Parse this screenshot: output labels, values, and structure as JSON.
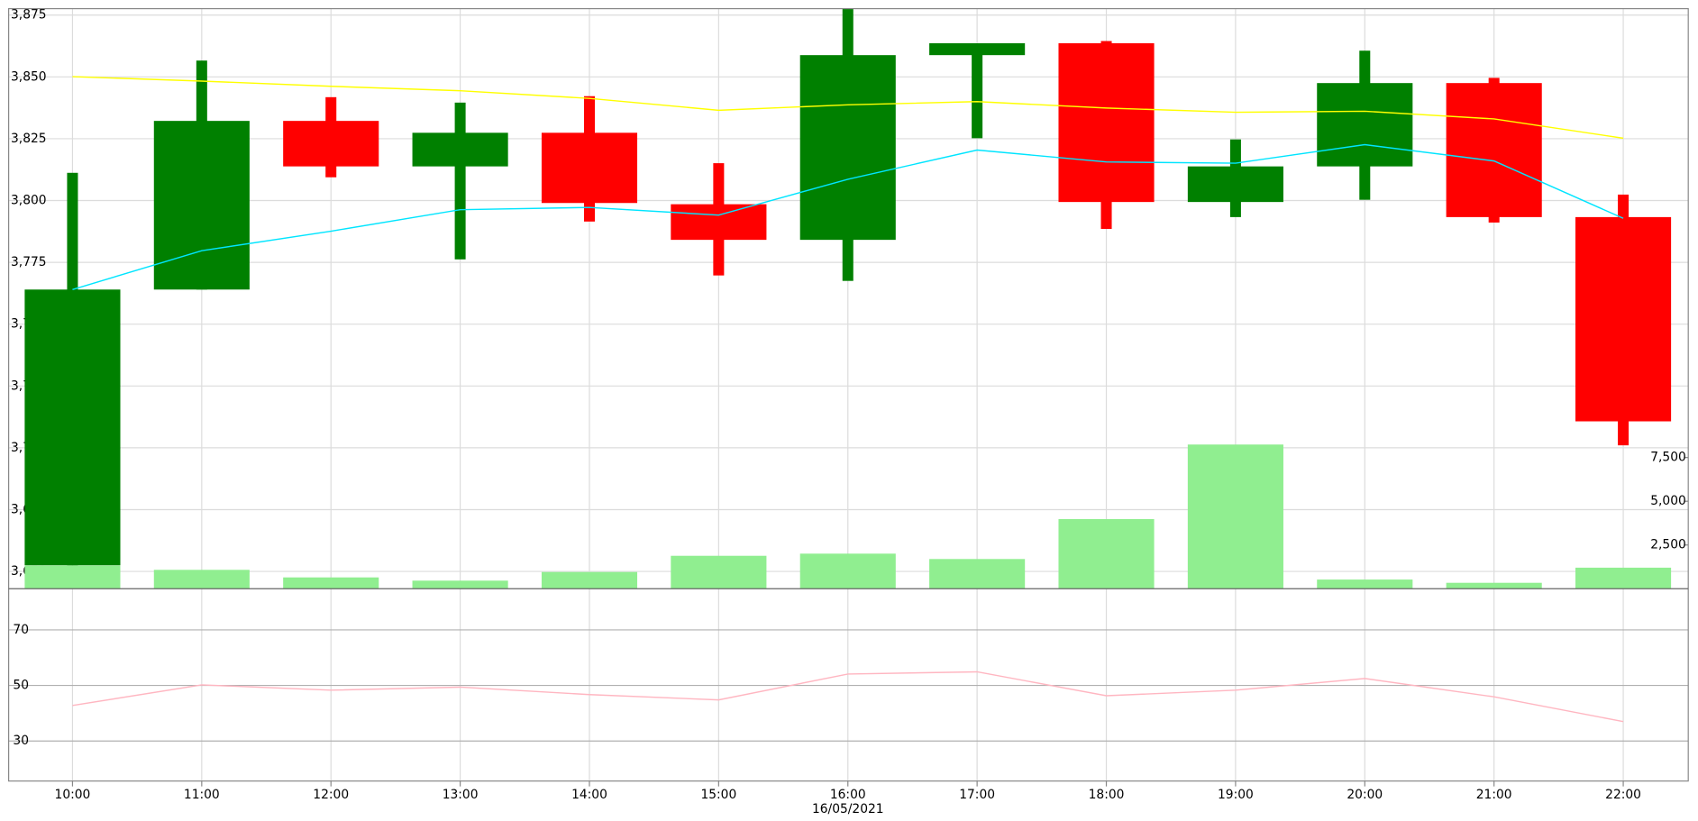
{
  "chart_data": [
    {
      "type": "candlestick",
      "categories": [
        "10:00",
        "11:00",
        "12:00",
        "13:00",
        "14:00",
        "15:00",
        "16:00",
        "17:00",
        "18:00",
        "19:00",
        "20:00",
        "21:00",
        "22:00"
      ],
      "x_label": "16/05/2021",
      "open": [
        3652.5,
        3764.0,
        3832.2,
        3813.8,
        3827.4,
        3798.5,
        3784.1,
        3858.8,
        3863.6,
        3799.4,
        3813.8,
        3847.5,
        3793.3
      ],
      "high": [
        3811.2,
        3856.6,
        3841.8,
        3839.6,
        3842.2,
        3815.1,
        3877.6,
        3863.6,
        3864.5,
        3824.7,
        3860.6,
        3849.6,
        3802.4
      ],
      "low": [
        3652.5,
        3764.0,
        3809.4,
        3776.2,
        3791.5,
        3769.7,
        3767.5,
        3825.2,
        3788.5,
        3793.3,
        3800.3,
        3791.1,
        3701.0
      ],
      "close": [
        3764.0,
        3832.2,
        3813.8,
        3827.4,
        3799.0,
        3784.1,
        3858.8,
        3863.6,
        3799.4,
        3813.8,
        3847.5,
        3793.3,
        3710.7
      ],
      "up_color": "#008000",
      "down_color": "#ff0000",
      "series": [
        {
          "color": "#ffff00",
          "values": [
            3850.1,
            3848.3,
            3846.2,
            3844.4,
            3841.3,
            3836.5,
            3838.7,
            3840.0,
            3837.4,
            3835.7,
            3836.1,
            3833.0,
            3825.2
          ]
        },
        {
          "color": "#00e5ff",
          "values": [
            3764.0,
            3779.7,
            3787.6,
            3796.3,
            3797.2,
            3794.1,
            3808.6,
            3820.4,
            3815.6,
            3815.1,
            3822.6,
            3816.0,
            3792.8
          ]
        }
      ],
      "volume": {
        "color": "#90ee90",
        "axis": "y2",
        "values": [
          1327,
          1080,
          648,
          463,
          957,
          1883,
          2006,
          1698,
          3981,
          8241,
          525,
          340,
          1204
        ]
      },
      "xlim": [
        -0.494,
        12.503
      ],
      "ylim": [
        3643,
        3877.6
      ],
      "yticks": [
        {
          "value": 3650,
          "label": "3,650"
        },
        {
          "value": 3675,
          "label": "3,675"
        },
        {
          "value": 3700,
          "label": "3,700"
        },
        {
          "value": 3725,
          "label": "3,725"
        },
        {
          "value": 3750,
          "label": "3,750"
        },
        {
          "value": 3775,
          "label": "3,775"
        },
        {
          "value": 3800,
          "label": "3,800"
        },
        {
          "value": 3825,
          "label": "3,825"
        },
        {
          "value": 3850,
          "label": "3,850"
        },
        {
          "value": 3875,
          "label": "3,875"
        }
      ],
      "y2lim": [
        0,
        33150
      ],
      "y2ticks": [
        {
          "value": 2500,
          "label": "2,500"
        },
        {
          "value": 5000,
          "label": "5,000"
        },
        {
          "value": 7500,
          "label": "7,500"
        }
      ],
      "grid": true
    },
    {
      "type": "line",
      "series": [
        {
          "color": "#ffb6c1",
          "values": [
            42.8,
            50.2,
            48.3,
            49.4,
            46.7,
            44.8,
            54.1,
            54.9,
            46.3,
            48.3,
            52.5,
            45.9,
            37.0
          ]
        }
      ],
      "ylim": [
        15.6,
        84.8
      ],
      "yticks": [
        30,
        50,
        70
      ],
      "grid": true
    }
  ]
}
